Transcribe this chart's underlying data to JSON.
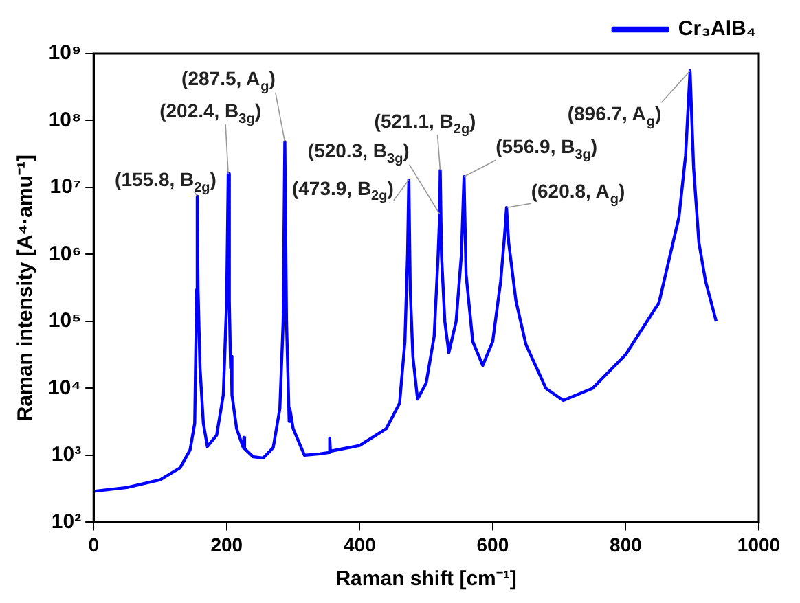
{
  "chart_data": {
    "type": "line",
    "xlabel": "Raman shift [cm⁻¹]",
    "ylabel": "Raman intensity [A⁴·amu⁻¹]",
    "x": [
      0,
      50,
      100,
      130,
      145,
      152,
      155,
      155.8,
      157,
      160,
      165,
      171,
      185,
      195,
      200,
      202.4,
      204,
      206,
      207,
      208,
      215,
      225,
      226,
      227,
      240,
      255,
      270,
      280,
      285,
      287.5,
      290,
      293,
      294,
      295,
      300,
      317,
      340,
      354,
      355,
      356,
      400,
      440,
      460,
      468,
      472,
      473.9,
      476,
      480,
      487,
      500,
      512,
      518,
      520.3,
      521.1,
      523,
      528,
      534,
      545,
      553,
      556.9,
      560,
      570,
      585,
      600,
      612,
      618,
      620.8,
      624,
      635,
      650,
      680,
      706,
      750,
      800,
      850,
      880,
      890,
      896.7,
      902,
      910,
      920,
      936
    ],
    "series": [
      {
        "name": "Cr₃AlB₄",
        "color": "#0000ff",
        "values": [
          290,
          330,
          430,
          650,
          1200,
          3000,
          300000,
          7400000,
          300000,
          20000,
          3000,
          1350,
          2000,
          8000,
          200000,
          16000000,
          200000,
          20000,
          30000,
          8000,
          2500,
          1300,
          1850,
          1250,
          950,
          910,
          1300,
          5000,
          100000,
          48000000,
          100000,
          8000,
          3200,
          5000,
          2500,
          1000,
          1050,
          1100,
          1800,
          1150,
          1400,
          2500,
          6000,
          50000,
          1000000,
          13000000,
          300000,
          30000,
          6900,
          12000,
          60000,
          1000000,
          4000000,
          18000000,
          1000000,
          100000,
          34000,
          100000,
          1000000,
          14500000,
          500000,
          50000,
          22000,
          50000,
          400000,
          2000000,
          5000000,
          1500000,
          200000,
          45000,
          10000,
          6600,
          10000,
          32000,
          190000,
          3600000,
          30000000,
          550000000,
          20000000,
          1500000,
          400000,
          100000
        ]
      }
    ],
    "log": "y",
    "xlim": [
      0,
      1000
    ],
    "xticks": [
      0,
      200,
      400,
      600,
      800,
      1000
    ],
    "ylim": [
      100,
      1000000000
    ],
    "yticks": [
      {
        "value": 100,
        "label": "10²"
      },
      {
        "value": 1000,
        "label": "10³"
      },
      {
        "value": 10000,
        "label": "10⁴"
      },
      {
        "value": 100000,
        "label": "10⁵"
      },
      {
        "value": 1000000,
        "label": "10⁶"
      },
      {
        "value": 10000000,
        "label": "10⁷"
      },
      {
        "value": 100000000,
        "label": "10⁸"
      },
      {
        "value": 1000000000,
        "label": "10⁹"
      }
    ],
    "legend": "top right",
    "marker": "none",
    "line_style": "solid",
    "annotations": [
      {
        "text": "(155.8, B$_{2g}$)",
        "x": 155.8,
        "y": 7400000
      },
      {
        "text": "(202.4, B$_{3g}$)",
        "x": 202.4,
        "y": 16000000
      },
      {
        "text": "(287.5, A$_{g}$)",
        "x": 287.5,
        "y": 48000000
      },
      {
        "text": "(473.9, B$_{2g}$)",
        "x": 473.9,
        "y": 13000000
      },
      {
        "text": "(520.3, B$_{3g}$)",
        "x": 520.3,
        "y": 4000000
      },
      {
        "text": "(521.1, B$_{2g}$)",
        "x": 521.1,
        "y": 18000000
      },
      {
        "text": "(556.9, B$_{3g}$)",
        "x": 556.9,
        "y": 14500000
      },
      {
        "text": "(620.8, A$_{g}$)",
        "x": 620.8,
        "y": 5000000
      },
      {
        "text": "(896.7, A$_{g}$)",
        "x": 896.7,
        "y": 550000000
      }
    ]
  }
}
